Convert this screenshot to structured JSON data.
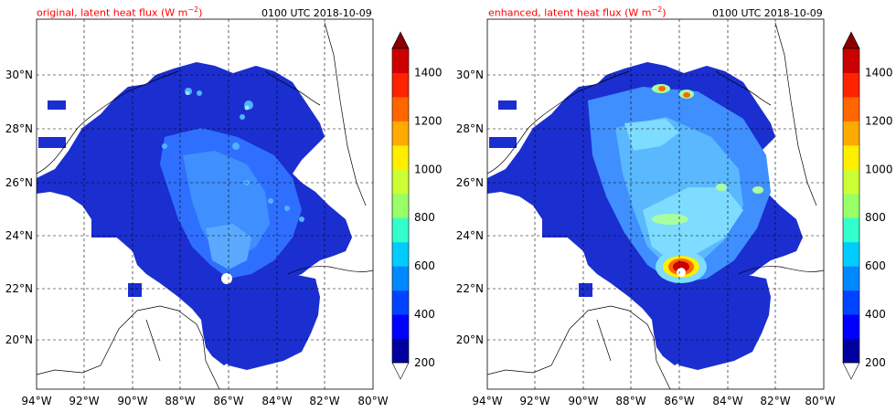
{
  "panels": [
    {
      "title": "original, latent heat flux (W m",
      "title_sup": "−2",
      "title_close": ")",
      "time": "0100 UTC 2018-10-09"
    },
    {
      "title": "enhanced, latent heat flux (W m",
      "title_sup": "−2",
      "title_close": ")",
      "time": "0100 UTC 2018-10-09"
    }
  ],
  "axes": {
    "lat_labels": [
      "30°N",
      "28°N",
      "26°N",
      "24°N",
      "22°N",
      "20°N"
    ],
    "lon_labels": [
      "94°W",
      "92°W",
      "90°W",
      "88°W",
      "86°W",
      "84°W",
      "82°W",
      "80°W"
    ],
    "lat_range": [
      18.2,
      32
    ],
    "lon_range": [
      -94,
      -80
    ]
  },
  "colorbar": {
    "tick_labels": [
      "200",
      "400",
      "600",
      "800",
      "1000",
      "1200",
      "1400"
    ],
    "levels": [
      200,
      300,
      400,
      500,
      600,
      700,
      800,
      900,
      1000,
      1100,
      1200,
      1300,
      1400,
      1500
    ],
    "colors": [
      "#00009e",
      "#0000ff",
      "#0044ff",
      "#0088ff",
      "#00ccff",
      "#33ffcc",
      "#99ff66",
      "#ccff33",
      "#ffee00",
      "#ffaa00",
      "#ff6600",
      "#ff2200",
      "#cc0000",
      "#880000"
    ],
    "extend": "both",
    "over_color": "#880000",
    "under_color": "#ffffff"
  },
  "chart_data": {
    "type": "heatmap",
    "variable": "latent heat flux",
    "units": "W m-2",
    "panels": [
      "original",
      "enhanced"
    ],
    "valid_time": "0100 UTC 2018-10-09",
    "storm_center": {
      "lon": -86.2,
      "lat": 22.4
    }
  }
}
